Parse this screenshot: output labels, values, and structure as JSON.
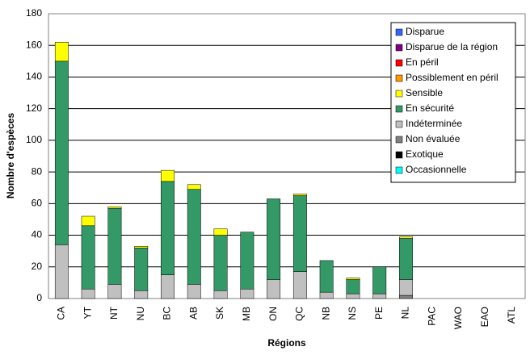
{
  "chart_data": {
    "type": "stacked_bar",
    "x_label": "Régions",
    "y_label": "Nombre d'espèces",
    "categories": [
      "CA",
      "YT",
      "NT",
      "NU",
      "BC",
      "AB",
      "SK",
      "MB",
      "ON",
      "QC",
      "NB",
      "NS",
      "PE",
      "NL",
      "PAC",
      "WAO",
      "EAO",
      "ATL"
    ],
    "series": [
      {
        "name": "Disparue",
        "color": "#3366ff",
        "values": [
          0,
          0,
          0,
          0,
          0,
          0,
          0,
          0,
          0,
          0,
          0,
          0,
          0,
          0,
          0,
          0,
          0,
          0
        ]
      },
      {
        "name": "Disparue de la région",
        "color": "#800080",
        "values": [
          0,
          0,
          0,
          0,
          0,
          0,
          0,
          0,
          0,
          0,
          0,
          0,
          0,
          0,
          0,
          0,
          0,
          0
        ]
      },
      {
        "name": "En péril",
        "color": "#ff0000",
        "values": [
          0,
          0,
          0,
          0,
          0,
          0,
          0,
          0,
          0,
          0,
          0,
          0,
          0,
          0,
          0,
          0,
          0,
          0
        ]
      },
      {
        "name": "Possiblement en péril",
        "color": "#ff9900",
        "values": [
          0,
          0,
          0,
          0,
          0,
          0,
          0,
          0,
          0,
          0,
          0,
          0,
          0,
          0,
          0,
          0,
          0,
          0
        ]
      },
      {
        "name": "Sensible",
        "color": "#ffff00",
        "values": [
          12,
          6,
          1,
          1,
          7,
          3,
          4,
          0,
          0,
          1,
          0,
          1,
          0,
          1,
          0,
          0,
          0,
          0
        ]
      },
      {
        "name": "En sécurité",
        "color": "#339966",
        "values": [
          116,
          40,
          48,
          27,
          59,
          60,
          35,
          36,
          51,
          48,
          20,
          9,
          17,
          26,
          0,
          0,
          0,
          0
        ]
      },
      {
        "name": "Indéterminée",
        "color": "#c0c0c0",
        "values": [
          34,
          6,
          9,
          5,
          15,
          9,
          5,
          6,
          12,
          17,
          4,
          3,
          3,
          10,
          0,
          0,
          0,
          0
        ]
      },
      {
        "name": "Non évaluée",
        "color": "#808080",
        "values": [
          0,
          0,
          0,
          0,
          0,
          0,
          0,
          0,
          0,
          0,
          0,
          0,
          0,
          2,
          0,
          0,
          0,
          0
        ]
      },
      {
        "name": "Exotique",
        "color": "#000000",
        "values": [
          0,
          0,
          0,
          0,
          0,
          0,
          0,
          0,
          0,
          0,
          0,
          0,
          0,
          0,
          0,
          0,
          0,
          0
        ]
      },
      {
        "name": "Occasionnelle",
        "color": "#00ffff",
        "values": [
          0,
          0,
          0,
          0,
          0,
          0,
          0,
          0,
          0,
          0,
          0,
          0,
          0,
          0,
          0,
          0,
          0,
          0
        ]
      }
    ],
    "ylim": [
      0,
      180
    ],
    "yticks": [
      0,
      20,
      40,
      60,
      80,
      100,
      120,
      140,
      160,
      180
    ],
    "grid": true,
    "legend": "upper right"
  }
}
